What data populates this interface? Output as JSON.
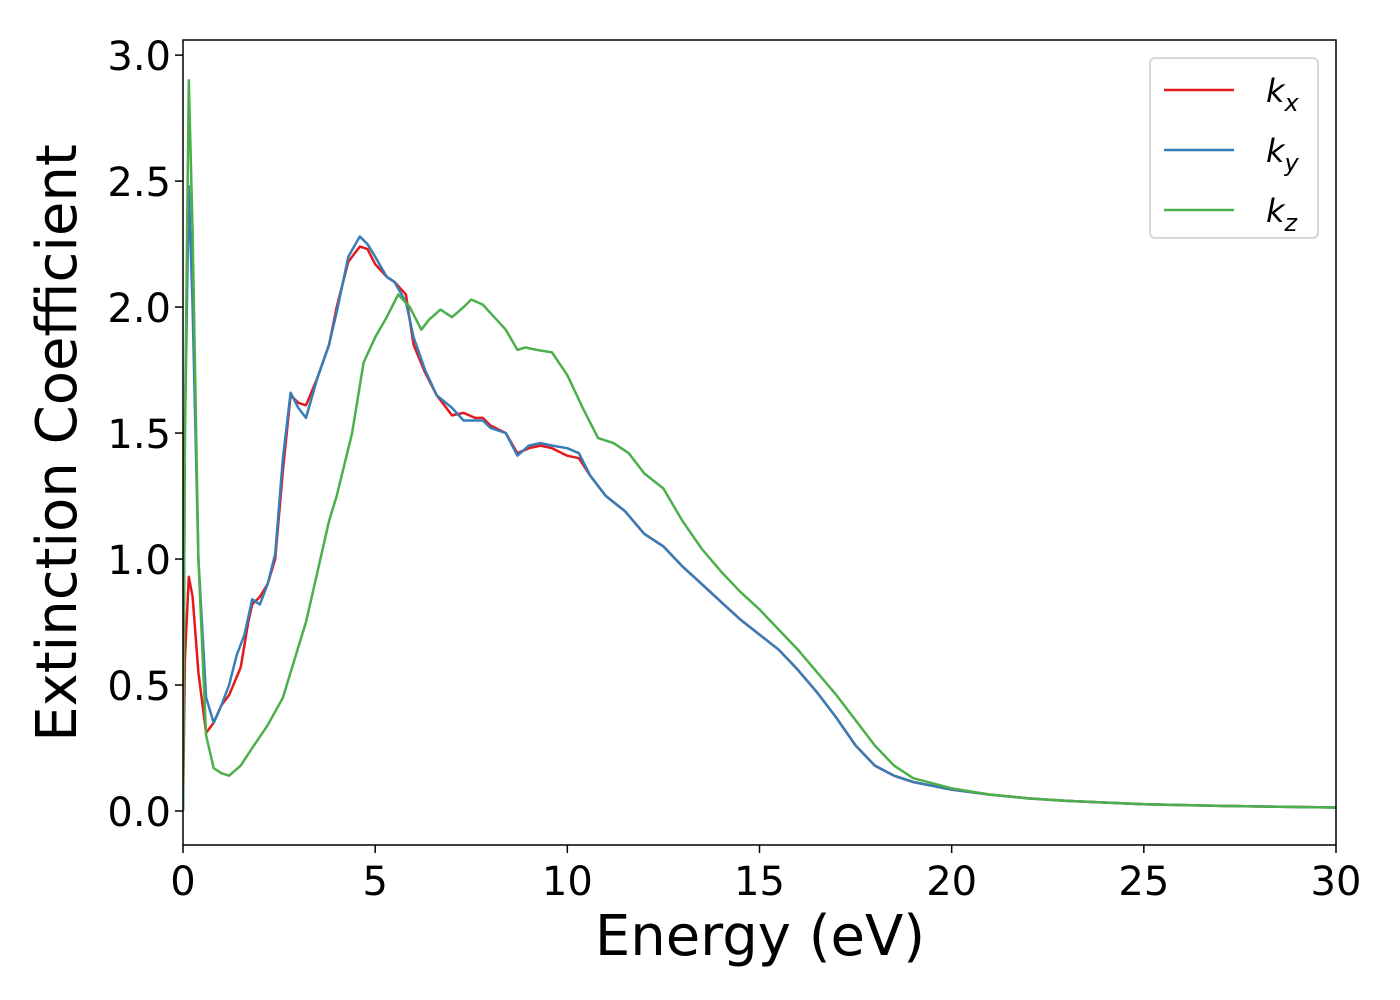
{
  "chart_data": {
    "type": "line",
    "xlabel": "Energy (eV)",
    "ylabel": "Extinction Coefficient",
    "xlim": [
      0,
      30
    ],
    "ylim": [
      -0.135,
      3.06
    ],
    "xticks": [
      0,
      5,
      10,
      15,
      20,
      25,
      30
    ],
    "yticks": [
      {
        "value": 0,
        "label": "0.0"
      },
      0.5,
      {
        "value": 1,
        "label": "1.0"
      },
      1.5,
      {
        "value": 2,
        "label": "2.0"
      },
      2.5,
      {
        "value": 3,
        "label": "3.0"
      }
    ],
    "legend": "upper right",
    "series": [
      {
        "name": "kx",
        "color": "#e41a1c",
        "x": [
          0,
          0.05,
          0.15,
          0.25,
          0.4,
          0.6,
          0.8,
          1.0,
          1.2,
          1.5,
          1.7,
          1.8,
          2.0,
          2.2,
          2.4,
          2.6,
          2.8,
          3.0,
          3.2,
          3.5,
          3.8,
          4.0,
          4.3,
          4.6,
          4.8,
          5.0,
          5.3,
          5.5,
          5.8,
          6.0,
          6.3,
          6.6,
          7.0,
          7.3,
          7.6,
          7.8,
          8.0,
          8.4,
          8.7,
          9.0,
          9.3,
          9.6,
          10.0,
          10.3,
          10.6,
          11.0,
          11.5,
          12.0,
          12.5,
          13.0,
          13.5,
          14.0,
          14.5,
          15.0,
          15.5,
          16.0,
          16.5,
          17.0,
          17.5,
          18.0,
          18.5,
          19.0,
          20.0,
          21.0,
          22.0,
          23.0,
          25.0,
          27.0,
          30.0
        ],
        "values": [
          0,
          0.6,
          0.93,
          0.85,
          0.55,
          0.31,
          0.35,
          0.42,
          0.46,
          0.57,
          0.75,
          0.82,
          0.85,
          0.9,
          1.0,
          1.35,
          1.65,
          1.62,
          1.61,
          1.72,
          1.85,
          2.0,
          2.18,
          2.24,
          2.23,
          2.17,
          2.12,
          2.1,
          2.05,
          1.85,
          1.74,
          1.65,
          1.57,
          1.58,
          1.56,
          1.56,
          1.53,
          1.5,
          1.42,
          1.44,
          1.45,
          1.44,
          1.41,
          1.4,
          1.33,
          1.25,
          1.19,
          1.1,
          1.05,
          0.97,
          0.9,
          0.83,
          0.76,
          0.7,
          0.64,
          0.56,
          0.47,
          0.37,
          0.26,
          0.18,
          0.14,
          0.115,
          0.085,
          0.065,
          0.05,
          0.04,
          0.027,
          0.02,
          0.014
        ]
      },
      {
        "name": "ky",
        "color": "#377eb8",
        "x": [
          0,
          0.05,
          0.15,
          0.25,
          0.4,
          0.6,
          0.8,
          1.0,
          1.2,
          1.4,
          1.6,
          1.8,
          2.0,
          2.2,
          2.4,
          2.6,
          2.8,
          3.0,
          3.2,
          3.5,
          3.8,
          4.0,
          4.3,
          4.6,
          4.8,
          5.0,
          5.3,
          5.5,
          5.8,
          6.0,
          6.3,
          6.6,
          7.0,
          7.3,
          7.6,
          7.8,
          8.0,
          8.4,
          8.7,
          9.0,
          9.3,
          9.6,
          10.0,
          10.3,
          10.6,
          11.0,
          11.5,
          12.0,
          12.5,
          13.0,
          13.5,
          14.0,
          14.5,
          15.0,
          15.5,
          16.0,
          16.5,
          17.0,
          17.5,
          18.0,
          18.5,
          19.0,
          20.0,
          21.0,
          22.0,
          23.0,
          25.0,
          27.0,
          30.0
        ],
        "values": [
          0,
          1.5,
          2.48,
          2.0,
          1.0,
          0.45,
          0.35,
          0.42,
          0.5,
          0.62,
          0.7,
          0.84,
          0.82,
          0.9,
          1.02,
          1.4,
          1.66,
          1.6,
          1.56,
          1.72,
          1.85,
          1.98,
          2.2,
          2.28,
          2.25,
          2.2,
          2.12,
          2.1,
          2.02,
          1.88,
          1.75,
          1.65,
          1.6,
          1.55,
          1.55,
          1.55,
          1.52,
          1.5,
          1.41,
          1.45,
          1.46,
          1.45,
          1.44,
          1.42,
          1.33,
          1.25,
          1.19,
          1.1,
          1.05,
          0.97,
          0.9,
          0.83,
          0.76,
          0.7,
          0.64,
          0.56,
          0.47,
          0.37,
          0.26,
          0.18,
          0.14,
          0.115,
          0.085,
          0.065,
          0.05,
          0.04,
          0.027,
          0.02,
          0.014
        ]
      },
      {
        "name": "kz",
        "color": "#4daf4a",
        "x": [
          0,
          0.05,
          0.15,
          0.25,
          0.4,
          0.6,
          0.8,
          1.0,
          1.2,
          1.5,
          1.8,
          2.2,
          2.6,
          2.8,
          3.2,
          3.5,
          3.8,
          4.0,
          4.4,
          4.7,
          5.0,
          5.3,
          5.6,
          5.9,
          6.2,
          6.4,
          6.7,
          7.0,
          7.3,
          7.5,
          7.8,
          8.1,
          8.4,
          8.7,
          8.9,
          9.2,
          9.6,
          10.0,
          10.4,
          10.8,
          11.2,
          11.6,
          12.0,
          12.5,
          13.0,
          13.5,
          14.0,
          14.5,
          15.0,
          15.5,
          16.0,
          16.5,
          17.0,
          17.5,
          18.0,
          18.5,
          19.0,
          20.0,
          21.0,
          22.0,
          23.0,
          25.0,
          27.0,
          30.0
        ],
        "values": [
          0,
          1.5,
          2.9,
          2.3,
          1.0,
          0.3,
          0.17,
          0.15,
          0.14,
          0.18,
          0.25,
          0.34,
          0.45,
          0.55,
          0.75,
          0.95,
          1.15,
          1.25,
          1.5,
          1.78,
          1.88,
          1.96,
          2.05,
          2.0,
          1.91,
          1.95,
          1.99,
          1.96,
          2.0,
          2.03,
          2.01,
          1.96,
          1.91,
          1.83,
          1.84,
          1.83,
          1.82,
          1.73,
          1.6,
          1.48,
          1.46,
          1.42,
          1.34,
          1.28,
          1.15,
          1.04,
          0.95,
          0.87,
          0.8,
          0.72,
          0.64,
          0.55,
          0.46,
          0.36,
          0.26,
          0.18,
          0.13,
          0.09,
          0.065,
          0.05,
          0.04,
          0.027,
          0.02,
          0.014
        ]
      }
    ]
  }
}
